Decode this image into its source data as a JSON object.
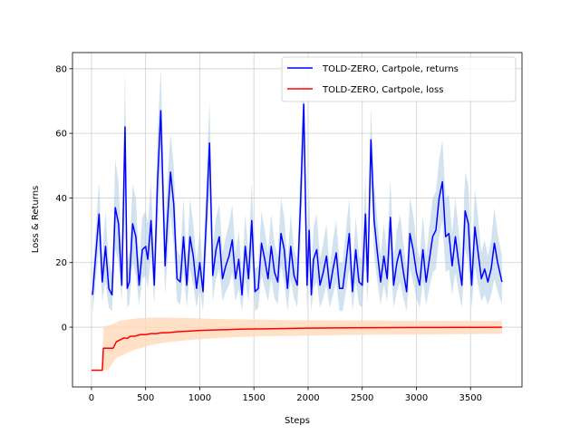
{
  "chart_data": {
    "type": "line",
    "xlabel": "Steps",
    "ylabel": "Loss & Returns",
    "xlim": [
      -175,
      3975
    ],
    "ylim": [
      -18.5,
      85
    ],
    "xticks": [
      0,
      500,
      1000,
      1500,
      2000,
      2500,
      3000,
      3500
    ],
    "yticks": [
      0,
      20,
      40,
      60,
      80
    ],
    "grid": true,
    "legend_position": "top-right",
    "series": [
      {
        "name": "TOLD-ZERO, Cartpole, returns",
        "color": "#0000ff",
        "band_color": "#a6c8e0",
        "band_opacity": 0.5,
        "x": [
          10,
          70,
          100,
          130,
          160,
          190,
          220,
          250,
          280,
          310,
          330,
          350,
          380,
          410,
          440,
          470,
          500,
          520,
          550,
          580,
          610,
          640,
          680,
          700,
          730,
          760,
          790,
          820,
          850,
          880,
          910,
          940,
          970,
          1000,
          1030,
          1060,
          1090,
          1120,
          1150,
          1180,
          1210,
          1240,
          1270,
          1300,
          1330,
          1360,
          1390,
          1420,
          1450,
          1480,
          1510,
          1540,
          1570,
          1600,
          1630,
          1660,
          1690,
          1720,
          1750,
          1780,
          1810,
          1840,
          1870,
          1900,
          1930,
          1960,
          1990,
          2010,
          2030,
          2050,
          2080,
          2110,
          2140,
          2170,
          2200,
          2230,
          2260,
          2290,
          2320,
          2350,
          2380,
          2410,
          2440,
          2470,
          2500,
          2530,
          2550,
          2580,
          2610,
          2640,
          2670,
          2700,
          2730,
          2760,
          2790,
          2820,
          2850,
          2880,
          2910,
          2940,
          2970,
          3000,
          3030,
          3060,
          3090,
          3120,
          3150,
          3180,
          3210,
          3240,
          3270,
          3300,
          3330,
          3360,
          3390,
          3420,
          3450,
          3480,
          3510,
          3540,
          3570,
          3600,
          3630,
          3660,
          3690,
          3720,
          3750,
          3790
        ],
        "values": [
          10,
          35,
          14,
          25,
          12,
          10,
          37,
          32,
          13,
          62,
          12,
          14,
          32,
          28,
          13,
          24,
          25,
          21,
          33,
          13,
          45,
          67,
          19,
          32,
          48,
          38,
          15,
          14,
          28,
          13,
          28,
          22,
          12,
          20,
          11,
          33,
          57,
          16,
          24,
          28,
          15,
          19,
          22,
          27,
          15,
          21,
          10,
          25,
          15,
          33,
          11,
          12,
          26,
          21,
          15,
          25,
          17,
          14,
          29,
          24,
          12,
          25,
          16,
          13,
          38,
          69,
          13,
          30,
          10,
          21,
          24,
          13,
          17,
          22,
          12,
          18,
          23,
          12,
          12,
          20,
          29,
          11,
          24,
          14,
          13,
          35,
          14,
          58,
          33,
          23,
          14,
          22,
          15,
          34,
          13,
          20,
          24,
          17,
          11,
          29,
          24,
          17,
          13,
          24,
          14,
          21,
          28,
          30,
          40,
          45,
          28,
          29,
          19,
          28,
          20,
          13,
          36,
          32,
          13,
          31,
          23,
          15,
          18,
          14,
          18,
          26,
          20,
          14
        ],
        "lower": [
          4,
          25,
          8,
          14,
          6,
          5,
          24,
          20,
          8,
          40,
          6,
          7,
          20,
          16,
          7,
          15,
          16,
          12,
          22,
          7,
          30,
          50,
          10,
          20,
          35,
          25,
          8,
          7,
          18,
          6,
          18,
          13,
          6,
          12,
          5,
          22,
          42,
          8,
          15,
          18,
          8,
          11,
          13,
          17,
          8,
          12,
          5,
          15,
          8,
          22,
          5,
          6,
          16,
          12,
          8,
          15,
          9,
          7,
          19,
          14,
          5,
          15,
          9,
          6,
          25,
          55,
          6,
          18,
          5,
          12,
          14,
          6,
          9,
          13,
          6,
          10,
          14,
          5,
          5,
          11,
          18,
          5,
          14,
          7,
          6,
          22,
          7,
          45,
          22,
          14,
          7,
          13,
          8,
          22,
          6,
          11,
          14,
          9,
          5,
          18,
          14,
          9,
          6,
          14,
          7,
          12,
          17,
          18,
          28,
          33,
          17,
          18,
          10,
          17,
          11,
          6,
          24,
          20,
          6,
          19,
          13,
          8,
          10,
          7,
          10,
          15,
          11,
          7
        ],
        "upper": [
          16,
          45,
          22,
          36,
          20,
          17,
          52,
          45,
          20,
          80,
          20,
          23,
          44,
          40,
          20,
          34,
          36,
          32,
          45,
          20,
          60,
          80,
          30,
          45,
          60,
          50,
          24,
          22,
          40,
          20,
          40,
          32,
          20,
          30,
          18,
          45,
          70,
          25,
          34,
          38,
          23,
          28,
          32,
          38,
          23,
          30,
          16,
          35,
          23,
          45,
          18,
          19,
          36,
          30,
          23,
          35,
          26,
          22,
          40,
          34,
          20,
          35,
          24,
          21,
          50,
          80,
          21,
          42,
          16,
          31,
          35,
          21,
          26,
          32,
          18,
          27,
          33,
          20,
          20,
          30,
          40,
          18,
          34,
          22,
          21,
          47,
          22,
          68,
          45,
          33,
          22,
          32,
          23,
          46,
          21,
          30,
          35,
          26,
          18,
          40,
          35,
          26,
          21,
          35,
          22,
          31,
          40,
          42,
          52,
          58,
          40,
          41,
          29,
          40,
          30,
          21,
          48,
          44,
          20,
          43,
          34,
          23,
          27,
          22,
          27,
          37,
          29,
          22
        ]
      },
      {
        "name": "TOLD-ZERO, Cartpole, loss",
        "color": "#ff0000",
        "band_color": "#ffdab9",
        "band_opacity": 0.8,
        "x": [
          0,
          50,
          100,
          110,
          150,
          200,
          230,
          260,
          300,
          330,
          360,
          400,
          450,
          500,
          550,
          600,
          650,
          700,
          800,
          900,
          1000,
          1200,
          1400,
          1600,
          1800,
          2000,
          2200,
          2400,
          2600,
          2800,
          3000,
          3200,
          3400,
          3600,
          3790
        ],
        "values": [
          -13.3,
          -13.3,
          -13.3,
          -6.5,
          -6.5,
          -6.5,
          -4.5,
          -4,
          -3.3,
          -3.5,
          -2.8,
          -2.8,
          -2.3,
          -2.3,
          -2,
          -2,
          -1.7,
          -1.7,
          -1.4,
          -1.2,
          -1,
          -0.8,
          -0.6,
          -0.5,
          -0.4,
          -0.3,
          -0.25,
          -0.2,
          -0.15,
          -0.12,
          -0.1,
          -0.08,
          -0.06,
          -0.05,
          -0.04
        ],
        "lower": [
          -13.3,
          -13.3,
          -13.3,
          -13.3,
          -13.3,
          -11,
          -9.5,
          -9,
          -8.5,
          -8,
          -7.5,
          -7,
          -6.5,
          -6,
          -5.5,
          -5.2,
          -4.9,
          -4.7,
          -4.3,
          -4,
          -3.7,
          -3.3,
          -3,
          -2.8,
          -2.7,
          -2.6,
          -2.5,
          -2.4,
          -2.35,
          -2.3,
          -2.25,
          -2.2,
          -2.15,
          -2.1,
          -2.1
        ],
        "upper": [
          -13.3,
          -13.3,
          -13.3,
          0.2,
          0.5,
          1,
          1.5,
          2,
          2.2,
          2.3,
          2.5,
          2.6,
          2.8,
          2.9,
          3,
          3,
          3,
          3,
          2.9,
          2.8,
          2.7,
          2.5,
          2.4,
          2.3,
          2.2,
          2.2,
          2.1,
          2.1,
          2.1,
          2,
          2,
          2,
          2,
          2,
          2
        ]
      }
    ]
  }
}
